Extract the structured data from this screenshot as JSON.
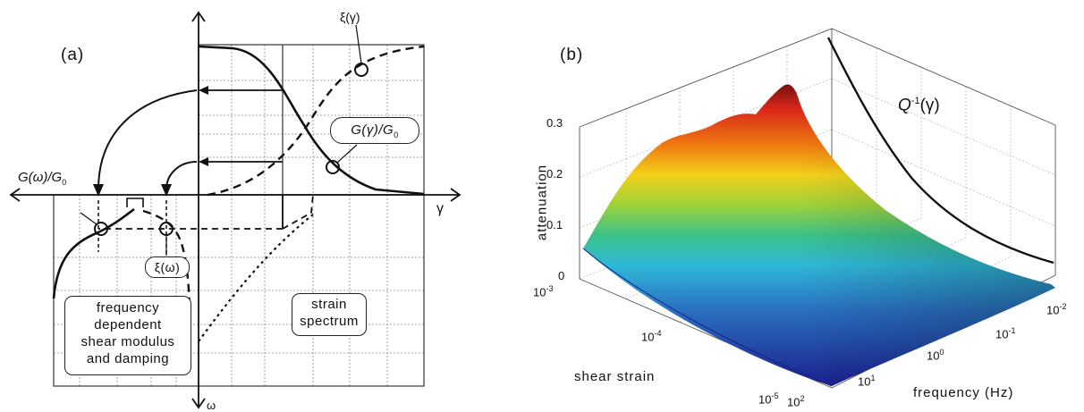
{
  "panel_a": {
    "label": "(a)",
    "axis_gamma": "γ",
    "axis_omega": "ω",
    "xi_gamma": "ξ(γ)",
    "G_gamma_label": "G(γ)/G",
    "G_gamma_sub": "0",
    "G_omega_label": "G(ω)/G",
    "G_omega_sub": "0",
    "xi_omega": "ξ(ω)",
    "strain_spectrum": [
      "strain",
      "spectrum"
    ],
    "freq_box": [
      "frequency",
      "dependent",
      "shear modulus",
      "and damping"
    ]
  },
  "panel_b": {
    "label": "(b)",
    "zlabel": "attenuation",
    "z_ticks": [
      "0",
      "0.1",
      "0.2",
      "0.3"
    ],
    "q_label_main": "Q",
    "q_label_sup": "-1",
    "q_label_arg": "(γ)",
    "strain_label": "shear strain",
    "strain_ticks": [
      {
        "base": "10",
        "exp": "-3"
      },
      {
        "base": "10",
        "exp": "-4"
      },
      {
        "base": "10",
        "exp": "-5"
      }
    ],
    "freq_label": "frequency (Hz)",
    "freq_ticks": [
      {
        "base": "10",
        "exp": "2"
      },
      {
        "base": "10",
        "exp": "1"
      },
      {
        "base": "10",
        "exp": "0"
      },
      {
        "base": "10",
        "exp": "-1"
      },
      {
        "base": "10",
        "exp": "-2"
      }
    ]
  },
  "colors": {
    "jet_low": "#1a1f8c",
    "jet_mid": "#2fb8d8",
    "jet_high": "#d8261a",
    "line": "#111111"
  }
}
